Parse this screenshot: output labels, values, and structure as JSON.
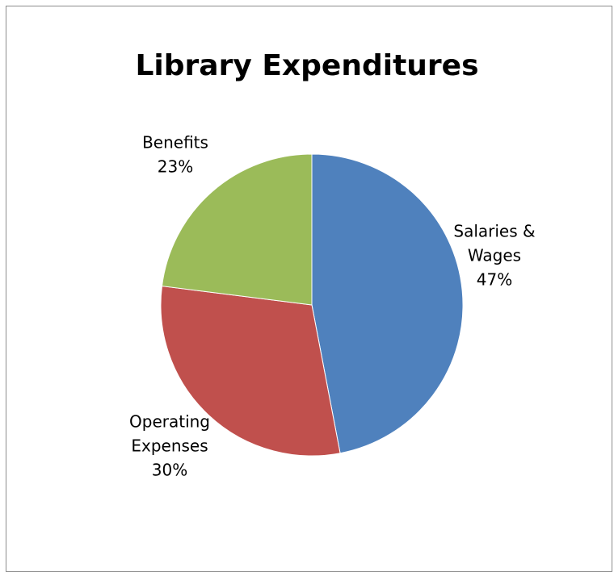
{
  "chart_data": {
    "type": "pie",
    "title": "Library Expenditures",
    "slices": [
      {
        "name": "Salaries & Wages",
        "label_lines": [
          "Salaries &",
          "Wages"
        ],
        "value": 47,
        "value_label": "47%",
        "color": "#4f81bd"
      },
      {
        "name": "Operating Expenses",
        "label_lines": [
          "Operating",
          "Expenses"
        ],
        "value": 30,
        "value_label": "30%",
        "color": "#c0504d"
      },
      {
        "name": "Benefits",
        "label_lines": [
          "Benefits"
        ],
        "value": 23,
        "value_label": "23%",
        "color": "#9bbb59"
      }
    ],
    "start_angle": "12 o'clock",
    "direction": "clockwise",
    "slice_border_color": "#ffffff",
    "legend": "none"
  }
}
